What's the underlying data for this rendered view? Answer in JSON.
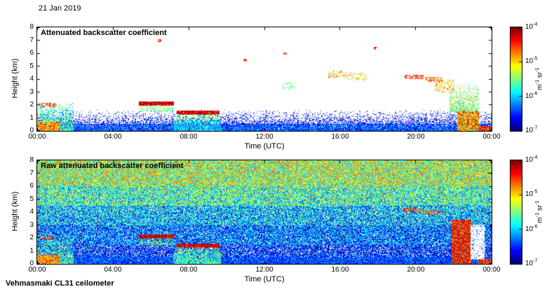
{
  "figure": {
    "date": "21 Jan 2019",
    "instrument": "Vehmasmaki CL31 ceilometer",
    "background_color": "#ffffff"
  },
  "chart_data": [
    {
      "type": "heatmap",
      "title": "Attenuated backscatter coefficient",
      "xlabel": "Time (UTC)",
      "ylabel": "Height (km)",
      "x_ticks": [
        "00:00",
        "04:00",
        "08:00",
        "12:00",
        "16:00",
        "20:00",
        "00:00"
      ],
      "x_range_hours": [
        0,
        24
      ],
      "y_ticks": [
        0,
        1,
        2,
        3,
        4,
        5,
        6,
        7,
        8
      ],
      "y_range_km": [
        0,
        8
      ],
      "grid": false,
      "background_value": "white (no signal / below 1e-7)",
      "colorbar": {
        "colormap": "jet",
        "scale": "log10",
        "ticks": [
          "10^-4",
          "10^-5",
          "10^-6",
          "10^-7"
        ],
        "log_range": [
          -7,
          -4
        ],
        "units": "m^-1 sr^-1",
        "position": "right"
      },
      "seed": 11,
      "features": [
        {
          "label": "boundary-layer aerosol (dense)",
          "t": [
            0,
            24
          ],
          "h": [
            0,
            0.5
          ],
          "p0": 0.97,
          "p1": 0.85,
          "log": [
            -6.8,
            -6.0
          ]
        },
        {
          "label": "boundary-layer aerosol (diffuse top)",
          "t": [
            0,
            24
          ],
          "h": [
            0.5,
            1.6
          ],
          "p0": 0.5,
          "p1": 0.02,
          "log": [
            -7.0,
            -6.3
          ]
        },
        {
          "label": "aerosol-fog plume after midnight",
          "t": [
            0,
            1.9
          ],
          "h": [
            0,
            2.2
          ],
          "p0": 0.95,
          "p1": 0.1,
          "log": [
            -6.3,
            -5.2
          ]
        },
        {
          "label": "strong near-surface scatter 00-01 UTC",
          "t": [
            0,
            1.2
          ],
          "h": [
            0,
            0.7
          ],
          "p": 0.9,
          "log": [
            -5.3,
            -4.3
          ]
        },
        {
          "label": "cloud fragments ~2 km 00-01 UTC",
          "t": [
            0.1,
            1.0
          ],
          "h": [
            1.85,
            2.15
          ],
          "p": 0.45,
          "log": [
            -4.8,
            -4.2
          ]
        },
        {
          "label": "stratus cloud base ~2.1 km 05:30-07:10",
          "t": [
            5.4,
            7.2
          ],
          "h": [
            1.95,
            2.25
          ],
          "p": 0.95,
          "log": [
            -4.5,
            -4.0
          ]
        },
        {
          "label": "sub-cloud scatter below 2 km cloud",
          "t": [
            5.4,
            7.2
          ],
          "h": [
            1.5,
            1.95
          ],
          "p0": 0.5,
          "p1": 0.25,
          "log": [
            -6.0,
            -5.1
          ]
        },
        {
          "label": "stratus cloud base ~1.4 km 07:25-09:35",
          "t": [
            7.4,
            9.6
          ],
          "h": [
            1.25,
            1.55
          ],
          "p": 0.95,
          "log": [
            -4.5,
            -4.0
          ]
        },
        {
          "label": "sub-cloud scatter below 1.4 km cloud",
          "t": [
            7.4,
            9.6
          ],
          "h": [
            0.85,
            1.25
          ],
          "p0": 0.55,
          "p1": 0.3,
          "log": [
            -6.0,
            -5.1
          ]
        },
        {
          "label": "moist boundary layer 07-10 UTC",
          "t": [
            7.2,
            9.7
          ],
          "h": [
            0,
            0.85
          ],
          "p0": 0.9,
          "p1": 0.6,
          "log": [
            -6.4,
            -5.6
          ]
        },
        {
          "label": "thin cloud patch ~3.5 km ~13 UTC",
          "t": [
            12.9,
            13.6
          ],
          "h": [
            3.2,
            3.7
          ],
          "p": 0.3,
          "log": [
            -5.9,
            -5.2
          ]
        },
        {
          "label": "cloud patch ~4.4 km ~16 UTC",
          "t": [
            15.4,
            16.3
          ],
          "h": [
            4.15,
            4.6
          ],
          "p": 0.35,
          "log": [
            -5.3,
            -4.4
          ]
        },
        {
          "label": "cloud patch ~4.1 km ~17 UTC",
          "t": [
            16.4,
            17.4
          ],
          "h": [
            3.9,
            4.45
          ],
          "p": 0.3,
          "log": [
            -5.5,
            -4.6
          ]
        },
        {
          "label": "cloud streak ~4.1 km 19:30-20:30",
          "t": [
            19.4,
            20.4
          ],
          "h": [
            4.0,
            4.3
          ],
          "p": 0.6,
          "log": [
            -4.8,
            -4.2
          ]
        },
        {
          "label": "cloud streak ~3.9 km 20:30-21:30",
          "t": [
            20.5,
            21.4
          ],
          "h": [
            3.8,
            4.15
          ],
          "p": 0.5,
          "log": [
            -5.0,
            -4.3
          ]
        },
        {
          "label": "descending cloud 21-22 UTC",
          "t": [
            21.0,
            22.0
          ],
          "h": [
            3.0,
            3.95
          ],
          "p": 0.35,
          "log": [
            -5.4,
            -4.5
          ]
        },
        {
          "label": "isolated speck ~7 km",
          "t": [
            6.4,
            6.55
          ],
          "h": [
            6.9,
            7.05
          ],
          "p": 0.7,
          "log": [
            -4.7,
            -4.3
          ]
        },
        {
          "label": "isolated speck ~5.5 km",
          "t": [
            10.9,
            11.05
          ],
          "h": [
            5.4,
            5.55
          ],
          "p": 0.7,
          "log": [
            -4.7,
            -4.3
          ]
        },
        {
          "label": "isolated speck ~6 km",
          "t": [
            13.0,
            13.15
          ],
          "h": [
            5.9,
            6.05
          ],
          "p": 0.7,
          "log": [
            -4.7,
            -4.3
          ]
        },
        {
          "label": "isolated speck ~6.4 km",
          "t": [
            17.8,
            17.95
          ],
          "h": [
            6.3,
            6.45
          ],
          "p": 0.7,
          "log": [
            -4.7,
            -4.3
          ]
        },
        {
          "label": "precipitating cloud 22-23 UTC upper part",
          "t": [
            21.8,
            23.3
          ],
          "h": [
            1.5,
            3.6
          ],
          "p0": 0.75,
          "p1": 0.1,
          "log": [
            -6.1,
            -4.8
          ]
        },
        {
          "label": "precipitation core 22-23 UTC",
          "t": [
            22.2,
            23.3
          ],
          "h": [
            0,
            1.5
          ],
          "p": 0.97,
          "log": [
            -5.6,
            -4.1
          ]
        },
        {
          "label": "shallow strong surface layer after 23:20",
          "t": [
            23.3,
            24
          ],
          "h": [
            0,
            0.35
          ],
          "p": 0.92,
          "log": [
            -4.9,
            -4.2
          ]
        }
      ]
    },
    {
      "type": "heatmap",
      "title": "Raw attenuated backscatter coefficient",
      "xlabel": "Time (UTC)",
      "ylabel": "Height (km)",
      "x_ticks": [
        "00:00",
        "04:00",
        "08:00",
        "12:00",
        "16:00",
        "20:00",
        "00:00"
      ],
      "x_range_hours": [
        0,
        24
      ],
      "y_ticks": [
        0,
        1,
        2,
        3,
        4,
        5,
        6,
        7,
        8
      ],
      "y_range_km": [
        0,
        8
      ],
      "grid": false,
      "background_value": "instrument noise increasing with range",
      "colorbar": {
        "colormap": "jet",
        "scale": "log10",
        "ticks": [
          "10^-4",
          "10^-5",
          "10^-6",
          "10^-7"
        ],
        "log_range": [
          -7,
          -4
        ],
        "units": "m^-1 sr^-1",
        "position": "right"
      },
      "seed": 97,
      "features": [
        {
          "label": "range noise 0-1.5 km",
          "t": [
            0,
            24
          ],
          "h": [
            0,
            1.5
          ],
          "p": 0.8,
          "log": [
            -7.0,
            -6.1
          ]
        },
        {
          "label": "range noise 1.5-3 km",
          "t": [
            0,
            24
          ],
          "h": [
            1.5,
            3.0
          ],
          "p": 0.88,
          "log": [
            -7.0,
            -5.7
          ]
        },
        {
          "label": "range noise 3-4.5 km",
          "t": [
            0,
            24
          ],
          "h": [
            3.0,
            4.5
          ],
          "p": 0.92,
          "log": [
            -6.8,
            -5.3
          ]
        },
        {
          "label": "range noise 4.5-6 km",
          "t": [
            0,
            24
          ],
          "h": [
            4.5,
            6.0
          ],
          "p": 0.95,
          "log": [
            -6.5,
            -4.9
          ]
        },
        {
          "label": "range noise 6-8 km",
          "t": [
            0,
            24
          ],
          "h": [
            6.0,
            8.0
          ],
          "p": 0.97,
          "log": [
            -6.2,
            -4.5
          ]
        },
        {
          "label": "sparse green speckle low levels",
          "t": [
            0,
            24
          ],
          "h": [
            0,
            2.5
          ],
          "p": 0.05,
          "log": [
            -6.0,
            -5.4
          ]
        },
        {
          "label": "boundary-layer aerosol (dense)",
          "t": [
            0,
            24
          ],
          "h": [
            0,
            0.5
          ],
          "p0": 0.97,
          "p1": 0.85,
          "log": [
            -6.8,
            -6.0
          ]
        },
        {
          "label": "aerosol-fog plume after midnight",
          "t": [
            0,
            1.9
          ],
          "h": [
            0,
            2.2
          ],
          "p0": 0.95,
          "p1": 0.1,
          "log": [
            -6.3,
            -5.2
          ]
        },
        {
          "label": "strong near-surface scatter 00-01 UTC",
          "t": [
            0,
            1.2
          ],
          "h": [
            0,
            0.7
          ],
          "p": 0.9,
          "log": [
            -5.3,
            -4.3
          ]
        },
        {
          "label": "cloud fragments ~2 km 00-01 UTC",
          "t": [
            0.1,
            1.0
          ],
          "h": [
            1.85,
            2.15
          ],
          "p": 0.45,
          "log": [
            -4.8,
            -4.2
          ]
        },
        {
          "label": "stratus cloud base ~2.1 km 05:30-07:10",
          "t": [
            5.4,
            7.2
          ],
          "h": [
            1.95,
            2.25
          ],
          "p": 0.95,
          "log": [
            -4.5,
            -4.0
          ]
        },
        {
          "label": "sub-cloud scatter below 2 km cloud",
          "t": [
            5.4,
            7.2
          ],
          "h": [
            1.5,
            1.95
          ],
          "p0": 0.5,
          "p1": 0.25,
          "log": [
            -6.0,
            -5.1
          ]
        },
        {
          "label": "stratus cloud base ~1.4 km 07:25-09:35",
          "t": [
            7.4,
            9.6
          ],
          "h": [
            1.25,
            1.55
          ],
          "p": 0.95,
          "log": [
            -4.5,
            -4.0
          ]
        },
        {
          "label": "sub-cloud scatter below 1.4 km cloud",
          "t": [
            7.4,
            9.6
          ],
          "h": [
            0.85,
            1.25
          ],
          "p0": 0.55,
          "p1": 0.3,
          "log": [
            -6.0,
            -5.1
          ]
        },
        {
          "label": "moist boundary layer 07-10 UTC",
          "t": [
            7.2,
            9.7
          ],
          "h": [
            0,
            0.85
          ],
          "p0": 0.9,
          "p1": 0.6,
          "log": [
            -6.2,
            -5.2
          ]
        },
        {
          "label": "cloud streak ~4.1 km 19:30-20:30",
          "t": [
            19.4,
            20.4
          ],
          "h": [
            4.0,
            4.3
          ],
          "p": 0.6,
          "log": [
            -4.8,
            -4.2
          ]
        },
        {
          "label": "cloud streak ~3.9 km 20:30-21:30",
          "t": [
            20.5,
            21.4
          ],
          "h": [
            3.8,
            4.15
          ],
          "p": 0.5,
          "log": [
            -5.0,
            -4.3
          ]
        },
        {
          "label": "precipitating cloud column 22-23 UTC",
          "t": [
            21.9,
            22.9
          ],
          "h": [
            0,
            3.4
          ],
          "p": 0.92,
          "log": [
            -4.9,
            -4.0
          ]
        },
        {
          "label": "attenuated zone, no signal (white)",
          "t": [
            22.9,
            23.6
          ],
          "h": [
            0.35,
            3.0
          ],
          "p": 0.85,
          "erase": true
        },
        {
          "label": "shallow strong surface layer after 23:20",
          "t": [
            23.3,
            24
          ],
          "h": [
            0,
            0.35
          ],
          "p": 0.92,
          "log": [
            -4.9,
            -4.2
          ]
        }
      ]
    }
  ]
}
